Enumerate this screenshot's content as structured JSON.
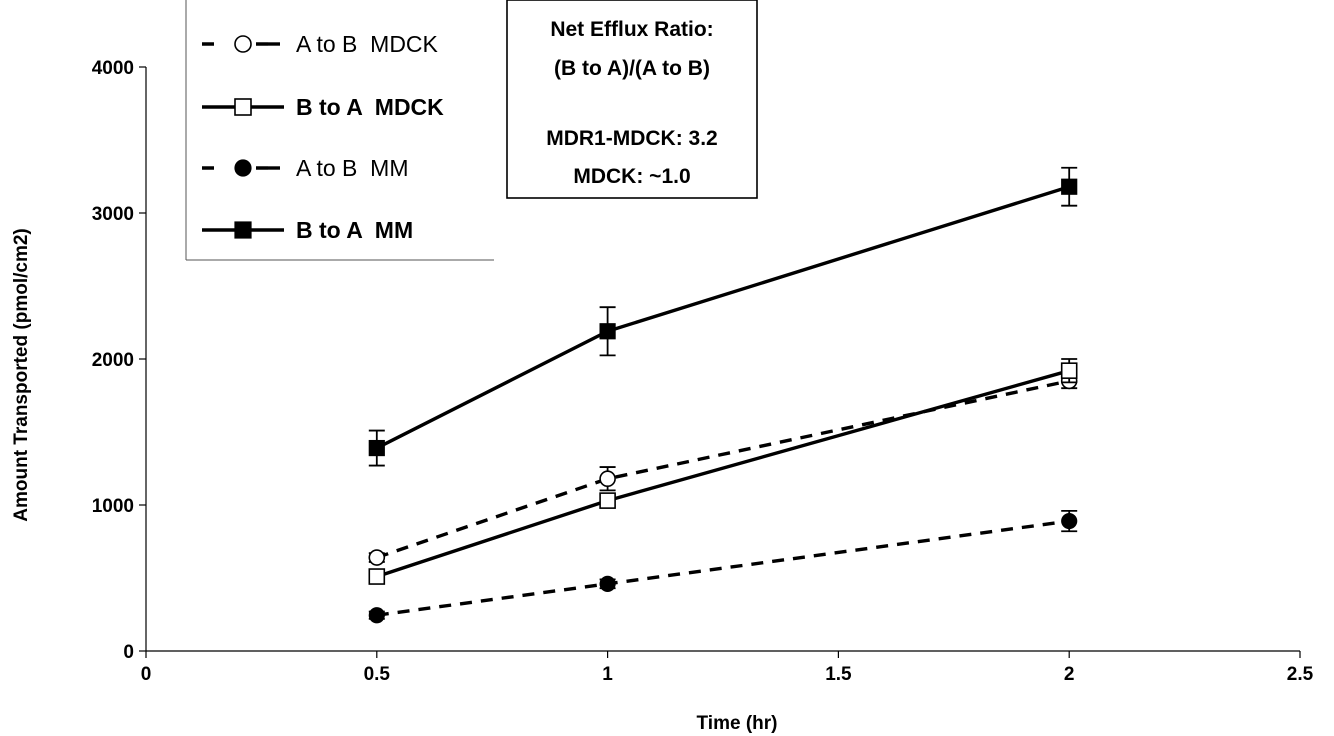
{
  "chart_data": {
    "type": "line",
    "xlabel": "Time (hr)",
    "ylabel": "Amount Transported (pmol/cm2)",
    "xlim": [
      0,
      2.5
    ],
    "ylim": [
      0,
      4000
    ],
    "xticks": [
      "0",
      "0.5",
      "1",
      "1.5",
      "2",
      "2.5"
    ],
    "yticks": [
      "0",
      "1000",
      "2000",
      "3000",
      "4000"
    ],
    "legend_position": "top-left",
    "grid": false,
    "x": [
      0.5,
      1,
      2
    ],
    "series": [
      {
        "name": "A to B  MDCK",
        "values": [
          640,
          1180,
          1850
        ],
        "errors": [
          30,
          80,
          50
        ],
        "line": "dashed",
        "marker": "circle-open",
        "bold_label": false
      },
      {
        "name": "B to A  MDCK",
        "values": [
          510,
          1030,
          1920
        ],
        "errors": [
          30,
          40,
          80
        ],
        "line": "solid",
        "marker": "square-open",
        "bold_label": true
      },
      {
        "name": "A to B  MM",
        "values": [
          245,
          460,
          890
        ],
        "errors": [
          25,
          30,
          70
        ],
        "line": "dashed",
        "marker": "circle-filled",
        "bold_label": false
      },
      {
        "name": "B to A  MM",
        "values": [
          1390,
          2190,
          3180
        ],
        "errors": [
          120,
          165,
          130
        ],
        "line": "solid",
        "marker": "square-filled",
        "bold_label": true
      }
    ],
    "annotation": [
      "Net Efflux Ratio:",
      "(B to A)/(A to B)",
      "",
      "MDR1-MDCK: 3.2",
      "MDCK: ~1.0"
    ],
    "colors": {
      "ink": "#000000",
      "background": "#ffffff"
    }
  }
}
